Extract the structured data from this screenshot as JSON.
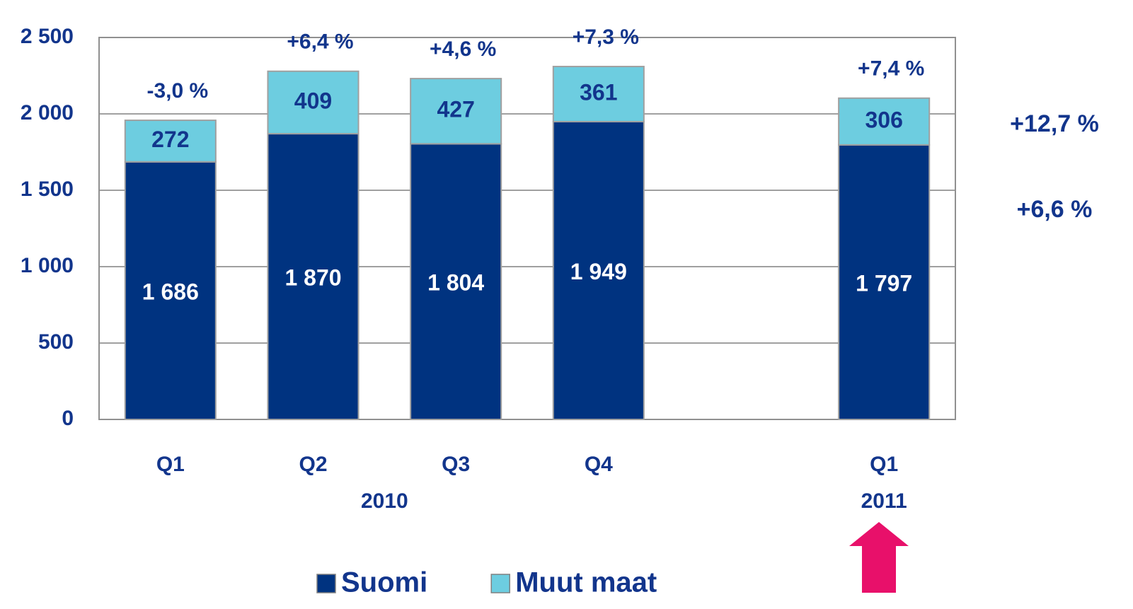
{
  "chart_data": {
    "type": "stacked_bar",
    "categories": [
      "Q1",
      "Q2",
      "Q3",
      "Q4",
      null,
      "Q1"
    ],
    "group_labels": [
      "2010",
      "2011"
    ],
    "series": [
      {
        "name": "Suomi",
        "color": "#003380",
        "values": [
          1686,
          1870,
          1804,
          1949,
          null,
          1797
        ],
        "value_labels": [
          "1 686",
          "1 870",
          "1 804",
          "1 949",
          null,
          "1 797"
        ]
      },
      {
        "name": "Muut maat",
        "color": "#6dcde0",
        "values": [
          272,
          409,
          427,
          361,
          null,
          306
        ]
      }
    ],
    "growth_labels": [
      "-3,0 %",
      "+6,4 %",
      "+4,6 %",
      "+7,3 %",
      null,
      "+7,4 %"
    ],
    "side_labels": [
      "+12,7 %",
      "+6,6 %"
    ],
    "ylim": [
      0,
      2500
    ],
    "yticks": [
      0,
      500,
      {
        "value": 1000,
        "label": "1 000"
      },
      {
        "value": 1500,
        "label": "1 500"
      },
      {
        "value": 2000,
        "label": "2 000"
      },
      {
        "value": 2500,
        "label": "2 500"
      }
    ],
    "grid": true,
    "legend": "bottom"
  }
}
